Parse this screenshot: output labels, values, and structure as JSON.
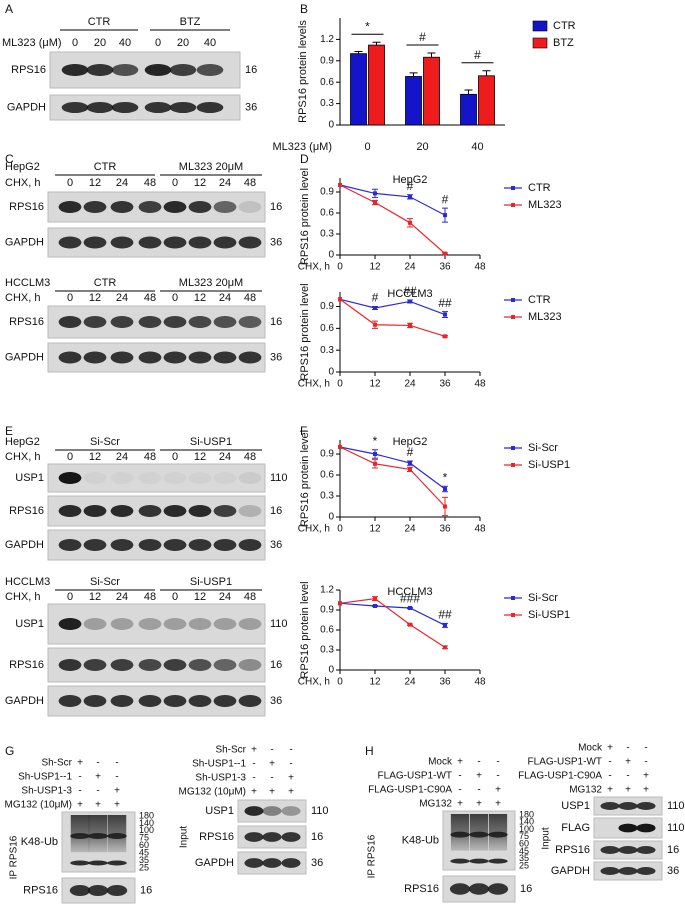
{
  "chart_data": [
    {
      "type": "bar",
      "panel": "B",
      "y_label": "RPS16 protein levels",
      "x_label": "ML323 (μM)",
      "categories": [
        "0",
        "20",
        "40"
      ],
      "series": [
        {
          "name": "CTR",
          "color": "#1414c8",
          "values": [
            1.0,
            0.68,
            0.43
          ],
          "errors": [
            0.03,
            0.05,
            0.06
          ]
        },
        {
          "name": "BTZ",
          "color": "#ee1c1c",
          "values": [
            1.12,
            0.95,
            0.69
          ],
          "errors": [
            0.04,
            0.06,
            0.07
          ]
        }
      ],
      "ylim": [
        0,
        1.5
      ],
      "yticks": [
        0,
        0.3,
        0.6,
        0.9,
        1.2
      ],
      "annotations": [
        {
          "text": "*",
          "x": "0"
        },
        {
          "text": "#",
          "x": "20"
        },
        {
          "text": "#",
          "x": "40"
        }
      ],
      "legend": "right"
    },
    {
      "type": "line",
      "panel": "D",
      "title": "HepG2",
      "y_label": "RPS16 protein level",
      "x_label": "CHX, h",
      "x": [
        0,
        12,
        24,
        36
      ],
      "xlim": [
        0,
        48
      ],
      "xticks": [
        0,
        12,
        24,
        36,
        48
      ],
      "ylim": [
        0,
        1.1
      ],
      "yticks": [
        0,
        0.3,
        0.6,
        0.9
      ],
      "series": [
        {
          "name": "CTR",
          "color": "#2b2bd6",
          "values": [
            1.0,
            0.88,
            0.83,
            0.57
          ],
          "errors": [
            0,
            0.06,
            0.03,
            0.1
          ]
        },
        {
          "name": "ML323",
          "color": "#e8262a",
          "values": [
            1.0,
            0.75,
            0.46,
            0.02
          ],
          "errors": [
            0,
            0.03,
            0.06,
            0.01
          ]
        }
      ],
      "annotations": [
        {
          "text": "#",
          "x": 24
        },
        {
          "text": "#",
          "x": 36
        }
      ],
      "legend": "right"
    },
    {
      "type": "line",
      "title": "HCCLM3",
      "y_label": "RPS16 protein level",
      "x_label": "CHX, h",
      "x": [
        0,
        12,
        24,
        36
      ],
      "xlim": [
        0,
        48
      ],
      "xticks": [
        0,
        12,
        24,
        36,
        48
      ],
      "ylim": [
        0,
        1.1
      ],
      "yticks": [
        0,
        0.3,
        0.6,
        0.9
      ],
      "series": [
        {
          "name": "CTR",
          "color": "#2b2bd6",
          "values": [
            1.0,
            0.88,
            0.97,
            0.79
          ],
          "errors": [
            0,
            0.02,
            0.02,
            0.04
          ]
        },
        {
          "name": "ML323",
          "color": "#e8262a",
          "values": [
            1.0,
            0.65,
            0.64,
            0.49
          ],
          "errors": [
            0,
            0.05,
            0.03,
            0.01
          ]
        }
      ],
      "annotations": [
        {
          "text": "#",
          "x": 12
        },
        {
          "text": "##",
          "x": 24
        },
        {
          "text": "##",
          "x": 36
        }
      ],
      "legend": "right"
    },
    {
      "type": "line",
      "panel": "F",
      "title": "HepG2",
      "y_label": "RPS16 protein level",
      "x_label": "CHX, h",
      "x": [
        0,
        12,
        24,
        36
      ],
      "xlim": [
        0,
        48
      ],
      "xticks": [
        0,
        12,
        24,
        36,
        48
      ],
      "ylim": [
        0,
        1.1
      ],
      "yticks": [
        0,
        0.3,
        0.6,
        0.9
      ],
      "series": [
        {
          "name": "Si-Scr",
          "color": "#2b2bd6",
          "values": [
            1.0,
            0.9,
            0.77,
            0.4
          ],
          "errors": [
            0,
            0.06,
            0.03,
            0.04
          ]
        },
        {
          "name": "Si-USP1",
          "color": "#e8262a",
          "values": [
            1.0,
            0.76,
            0.68,
            0.15
          ],
          "errors": [
            0,
            0.06,
            0.03,
            0.13
          ]
        }
      ],
      "annotations": [
        {
          "text": "*",
          "x": 12
        },
        {
          "text": "#",
          "x": 24
        },
        {
          "text": "*",
          "x": 36
        }
      ],
      "legend": "right"
    },
    {
      "type": "line",
      "title": "HCCLM3",
      "y_label": "RPS16 protein level",
      "x_label": "CHX, h",
      "x": [
        0,
        12,
        24,
        36
      ],
      "xlim": [
        0,
        48
      ],
      "xticks": [
        0,
        12,
        24,
        36,
        48
      ],
      "ylim": [
        0,
        1.2
      ],
      "yticks": [
        0,
        0.3,
        0.6,
        0.9,
        1.2
      ],
      "series": [
        {
          "name": "Si-Scr",
          "color": "#2b2bd6",
          "values": [
            1.0,
            0.96,
            0.93,
            0.67
          ],
          "errors": [
            0,
            0.01,
            0.01,
            0.03
          ]
        },
        {
          "name": "Si-USP1",
          "color": "#e8262a",
          "values": [
            1.0,
            1.07,
            0.68,
            0.34
          ],
          "errors": [
            0,
            0.03,
            0.01,
            0.02
          ]
        }
      ],
      "annotations": [
        {
          "text": "###",
          "x": 24
        },
        {
          "text": "##",
          "x": 36
        }
      ],
      "legend": "right"
    }
  ],
  "blots": [
    {
      "panel": "A",
      "dose_label": "ML323 (μM)",
      "groups": [
        "CTR",
        "BTZ"
      ],
      "lanes": [
        "0",
        "20",
        "40",
        "0",
        "20",
        "40"
      ],
      "rows": [
        {
          "name": "RPS16",
          "mw": "16"
        },
        {
          "name": "GAPDH",
          "mw": "36"
        }
      ]
    },
    {
      "panel": "C",
      "cell_line": "HepG2",
      "dose_label": "CHX, h",
      "groups": [
        "CTR",
        "ML323 20μM"
      ],
      "lanes": [
        "0",
        "12",
        "24",
        "48",
        "0",
        "12",
        "24",
        "48"
      ],
      "rows": [
        {
          "name": "RPS16",
          "mw": "16"
        },
        {
          "name": "GAPDH",
          "mw": "36"
        }
      ]
    },
    {
      "cell_line": "HCCLM3",
      "dose_label": "CHX, h",
      "groups": [
        "CTR",
        "ML323 20μM"
      ],
      "lanes": [
        "0",
        "12",
        "24",
        "48",
        "0",
        "12",
        "24",
        "48"
      ],
      "rows": [
        {
          "name": "RPS16",
          "mw": "16"
        },
        {
          "name": "GAPDH",
          "mw": "36"
        }
      ]
    },
    {
      "panel": "E",
      "cell_line": "HepG2",
      "dose_label": "CHX, h",
      "groups": [
        "Si-Scr",
        "Si-USP1"
      ],
      "lanes": [
        "0",
        "12",
        "24",
        "48",
        "0",
        "12",
        "24",
        "48"
      ],
      "rows": [
        {
          "name": "USP1",
          "mw": "110"
        },
        {
          "name": "RPS16",
          "mw": "16"
        },
        {
          "name": "GAPDH",
          "mw": "36"
        }
      ]
    },
    {
      "cell_line": "HCCLM3",
      "dose_label": "CHX, h",
      "groups": [
        "Si-Scr",
        "Si-USP1"
      ],
      "lanes": [
        "0",
        "12",
        "24",
        "48",
        "0",
        "12",
        "24",
        "48"
      ],
      "rows": [
        {
          "name": "USP1",
          "mw": "110"
        },
        {
          "name": "RPS16",
          "mw": "16"
        },
        {
          "name": "GAPDH",
          "mw": "36"
        }
      ]
    },
    {
      "panel": "G",
      "side_label": "IP RPS16",
      "treatments": [
        {
          "name": "Sh-Scr",
          "marks": [
            "+",
            "-",
            "-"
          ]
        },
        {
          "name": "Sh-USP1--1",
          "marks": [
            "-",
            "+",
            "-"
          ]
        },
        {
          "name": "Sh-USP1-3",
          "marks": [
            "-",
            "-",
            "+"
          ]
        },
        {
          "name": "MG132 (10μM)",
          "marks": [
            "+",
            "+",
            "+"
          ]
        }
      ],
      "rows": [
        {
          "name": "K48-Ub",
          "ladder": [
            "180",
            "140",
            "100",
            "75",
            "60",
            "45",
            "35",
            "25"
          ]
        },
        {
          "name": "RPS16",
          "mw": "16"
        }
      ]
    },
    {
      "side_label": "Input",
      "treatments": [
        {
          "name": "Sh-Scr",
          "marks": [
            "+",
            "-",
            "-"
          ]
        },
        {
          "name": "Sh-USP1--1",
          "marks": [
            "-",
            "+",
            "-"
          ]
        },
        {
          "name": "Sh-USP1-3",
          "marks": [
            "-",
            "-",
            "+"
          ]
        },
        {
          "name": "MG132 (10μM)",
          "marks": [
            "+",
            "+",
            "+"
          ]
        }
      ],
      "rows": [
        {
          "name": "USP1",
          "mw": "110"
        },
        {
          "name": "RPS16",
          "mw": "16"
        },
        {
          "name": "GAPDH",
          "mw": "36"
        }
      ]
    },
    {
      "panel": "H",
      "side_label": "IP RPS16",
      "treatments": [
        {
          "name": "Mock",
          "marks": [
            "+",
            "-",
            "-"
          ]
        },
        {
          "name": "FLAG-USP1-WT",
          "marks": [
            "-",
            "+",
            "-"
          ]
        },
        {
          "name": "FLAG-USP1-C90A",
          "marks": [
            "-",
            "-",
            "+"
          ]
        },
        {
          "name": "MG132",
          "marks": [
            "+",
            "+",
            "+"
          ]
        }
      ],
      "rows": [
        {
          "name": "K48-Ub",
          "ladder": [
            "180",
            "140",
            "100",
            "75",
            "60",
            "45",
            "35",
            "25"
          ]
        },
        {
          "name": "RPS16",
          "mw": "16"
        }
      ]
    },
    {
      "side_label": "Input",
      "treatments": [
        {
          "name": "Mock",
          "marks": [
            "+",
            "-",
            "-"
          ]
        },
        {
          "name": "FLAG-USP1-WT",
          "marks": [
            "-",
            "+",
            "-"
          ]
        },
        {
          "name": "FLAG-USP1-C90A",
          "marks": [
            "-",
            "-",
            "+"
          ]
        },
        {
          "name": "MG132",
          "marks": [
            "+",
            "+",
            "+"
          ]
        }
      ],
      "rows": [
        {
          "name": "USP1",
          "mw": "110"
        },
        {
          "name": "FLAG",
          "mw": "110"
        },
        {
          "name": "RPS16",
          "mw": "16"
        },
        {
          "name": "GAPDH",
          "mw": "36"
        }
      ]
    }
  ]
}
